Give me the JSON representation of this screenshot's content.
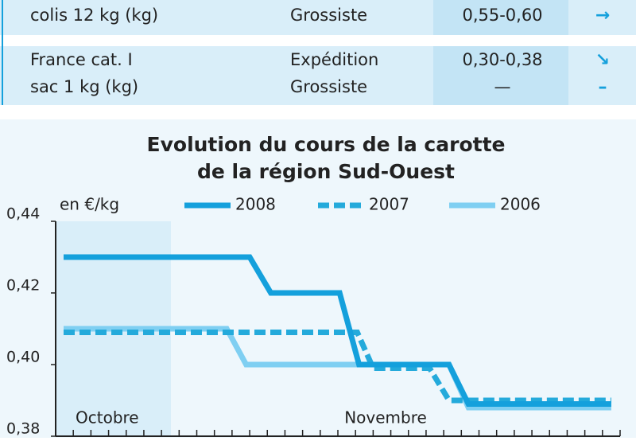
{
  "table": {
    "rows": [
      {
        "product": [
          "colis 12 kg (kg)"
        ],
        "stage": [
          "Grossiste"
        ],
        "price": [
          "0,55-0,60"
        ],
        "trend": [
          "→"
        ]
      },
      {
        "product": [
          "France cat. I",
          "sac 1 kg (kg)"
        ],
        "stage": [
          "Expédition",
          "Grossiste"
        ],
        "price": [
          "0,30-0,38",
          "—"
        ],
        "trend": [
          "↘",
          "–"
        ]
      }
    ]
  },
  "chart_data": {
    "type": "line",
    "title": [
      "Evolution du cours de la carotte",
      "de la région Sud-Ouest"
    ],
    "y_label": "en €/kg",
    "months": [
      "Octobre",
      "Novembre"
    ],
    "xlim": [
      0,
      32
    ],
    "ylim": [
      0.38,
      0.44
    ],
    "yticks": [
      {
        "value": 0.38,
        "label": "0,38"
      },
      {
        "value": 0.4,
        "label": "0,40"
      },
      {
        "value": 0.42,
        "label": "0,42"
      },
      {
        "value": 0.44,
        "label": "0,44"
      }
    ],
    "series": [
      {
        "name": "2008",
        "color": "#14a0dc",
        "style": "solid",
        "x": [
          0.45,
          11.0,
          12.2,
          16.1,
          17.2,
          22.3,
          23.4,
          31.5
        ],
        "values": [
          0.43,
          0.43,
          0.42,
          0.42,
          0.4,
          0.4,
          0.389,
          0.389
        ]
      },
      {
        "name": "2007",
        "color": "#24aadb",
        "style": "dashed",
        "x": [
          0.45,
          17.1,
          18.0,
          21.2,
          22.3,
          31.5
        ],
        "values": [
          0.409,
          0.409,
          0.399,
          0.399,
          0.39,
          0.39
        ]
      },
      {
        "name": "2006",
        "color": "#7fcff2",
        "style": "solid",
        "x": [
          0.45,
          9.7,
          10.8,
          22.3,
          23.4,
          31.5
        ],
        "values": [
          0.41,
          0.41,
          0.4,
          0.4,
          0.388,
          0.388
        ]
      }
    ]
  }
}
